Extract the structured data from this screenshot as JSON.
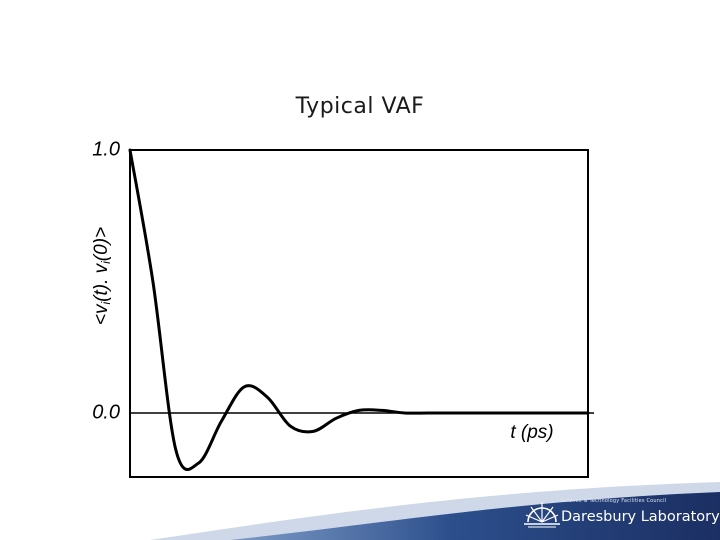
{
  "slide": {
    "title": "Typical VAF"
  },
  "footer": {
    "council": "Science & Technology Facilities Council",
    "lab_name": "Daresbury Laboratory",
    "logo_icon": "sun-rays-logo-icon",
    "colors": {
      "dark_blue": "#1b2f63",
      "mid_blue": "#2c4f8c",
      "light_blue": "#6f8fc0"
    }
  },
  "chart_data": {
    "type": "line",
    "title": "Typical VAF",
    "xlabel": "t (ps)",
    "ylabel": "<vi(t).vi(0)>",
    "ylabel_parts": {
      "pre": "<v",
      "sub1": "i",
      "mid": "(t). v",
      "sub2": "i",
      "post": "(0)>"
    },
    "ytick_labels": [
      {
        "value": 1.0,
        "label": "1.0"
      },
      {
        "value": 0.0,
        "label": "0.0"
      }
    ],
    "ylim": [
      -0.24,
      1.0
    ],
    "xlim": [
      0,
      1.0
    ],
    "grid": false,
    "legend": "none",
    "series": [
      {
        "color": "#000000",
        "x": [
          0,
          0.05,
          0.1,
          0.15,
          0.2,
          0.25,
          0.3,
          0.35,
          0.4,
          0.45,
          0.5,
          0.55,
          0.6,
          0.65,
          0.7,
          0.75,
          0.8,
          0.85,
          0.9,
          0.95,
          1.0
        ],
        "y": [
          1.0,
          0.5,
          -0.14,
          -0.19,
          -0.03,
          0.1,
          0.06,
          -0.05,
          -0.07,
          -0.02,
          0.01,
          0.01,
          0.0,
          0.0,
          0.0,
          0.0,
          0.0,
          0.0,
          0.0,
          0.0,
          0.0
        ]
      }
    ]
  }
}
